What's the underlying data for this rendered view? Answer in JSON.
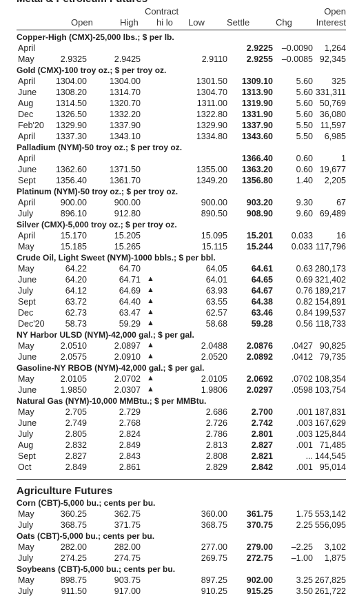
{
  "header": {
    "section_title": "Metal & Petroleum Futures",
    "contract_label": "Contract",
    "open_interest_top": "Open",
    "columns": [
      "Open",
      "High",
      "hi lo",
      "Low",
      "Settle",
      "Chg",
      "Interest"
    ]
  },
  "metal_petroleum": [
    {
      "name": "Copper-High (CMX)-25,000 lbs.; $ per lb.",
      "rows": [
        {
          "month": "April",
          "open": "",
          "high": "",
          "hilo": "",
          "low": "",
          "settle": "2.9225",
          "chg": "–0.0090",
          "oi": "1,264"
        },
        {
          "month": "May",
          "open": "2.9325",
          "high": "2.9425",
          "hilo": "",
          "low": "2.9110",
          "settle": "2.9255",
          "chg": "–0.0085",
          "oi": "92,345"
        }
      ]
    },
    {
      "name": "Gold (CMX)-100 troy oz.; $ per troy oz.",
      "rows": [
        {
          "month": "April",
          "open": "1304.00",
          "high": "1304.00",
          "hilo": "",
          "low": "1301.50",
          "settle": "1309.10",
          "chg": "5.60",
          "oi": "325"
        },
        {
          "month": "June",
          "open": "1308.20",
          "high": "1314.70",
          "hilo": "",
          "low": "1304.70",
          "settle": "1313.90",
          "chg": "5.60",
          "oi": "331,311"
        },
        {
          "month": "Aug",
          "open": "1314.50",
          "high": "1320.70",
          "hilo": "",
          "low": "1311.00",
          "settle": "1319.90",
          "chg": "5.60",
          "oi": "50,769"
        },
        {
          "month": "Dec",
          "open": "1326.50",
          "high": "1332.20",
          "hilo": "",
          "low": "1322.80",
          "settle": "1331.90",
          "chg": "5.60",
          "oi": "36,080"
        },
        {
          "month": "Feb'20",
          "open": "1329.90",
          "high": "1337.90",
          "hilo": "",
          "low": "1329.90",
          "settle": "1337.90",
          "chg": "5.50",
          "oi": "11,597"
        },
        {
          "month": "April",
          "open": "1337.30",
          "high": "1343.10",
          "hilo": "",
          "low": "1334.80",
          "settle": "1343.60",
          "chg": "5.50",
          "oi": "6,985"
        }
      ]
    },
    {
      "name": "Palladium (NYM)-50 troy oz.; $ per troy oz.",
      "rows": [
        {
          "month": "April",
          "open": "",
          "high": "",
          "hilo": "",
          "low": "",
          "settle": "1366.40",
          "chg": "0.60",
          "oi": "1"
        },
        {
          "month": "June",
          "open": "1362.60",
          "high": "1371.50",
          "hilo": "",
          "low": "1355.00",
          "settle": "1363.20",
          "chg": "0.60",
          "oi": "19,677"
        },
        {
          "month": "Sept",
          "open": "1356.40",
          "high": "1361.70",
          "hilo": "",
          "low": "1349.20",
          "settle": "1356.80",
          "chg": "1.40",
          "oi": "2,205"
        }
      ]
    },
    {
      "name": "Platinum (NYM)-50 troy oz.; $ per troy oz.",
      "rows": [
        {
          "month": "April",
          "open": "900.00",
          "high": "900.00",
          "hilo": "",
          "low": "900.00",
          "settle": "903.20",
          "chg": "9.30",
          "oi": "67"
        },
        {
          "month": "July",
          "open": "896.10",
          "high": "912.80",
          "hilo": "",
          "low": "890.50",
          "settle": "908.90",
          "chg": "9.60",
          "oi": "69,489"
        }
      ]
    },
    {
      "name": "Silver (CMX)-5,000 troy oz.; $ per troy oz.",
      "rows": [
        {
          "month": "April",
          "open": "15.170",
          "high": "15.205",
          "hilo": "",
          "low": "15.095",
          "settle": "15.201",
          "chg": "0.033",
          "oi": "16"
        },
        {
          "month": "May",
          "open": "15.185",
          "high": "15.265",
          "hilo": "",
          "low": "15.115",
          "settle": "15.244",
          "chg": "0.033",
          "oi": "117,796"
        }
      ]
    },
    {
      "name": "Crude Oil, Light Sweet (NYM)-1000 bbls.; $ per bbl.",
      "rows": [
        {
          "month": "May",
          "open": "64.22",
          "high": "64.70",
          "hilo": "",
          "low": "64.05",
          "settle": "64.61",
          "chg": "0.63",
          "oi": "280,173"
        },
        {
          "month": "June",
          "open": "64.20",
          "high": "64.71",
          "hilo": "▲",
          "low": "64.01",
          "settle": "64.65",
          "chg": "0.69",
          "oi": "321,402"
        },
        {
          "month": "July",
          "open": "64.12",
          "high": "64.69",
          "hilo": "▲",
          "low": "63.93",
          "settle": "64.67",
          "chg": "0.76",
          "oi": "189,217"
        },
        {
          "month": "Sept",
          "open": "63.72",
          "high": "64.40",
          "hilo": "▲",
          "low": "63.55",
          "settle": "64.38",
          "chg": "0.82",
          "oi": "154,891"
        },
        {
          "month": "Dec",
          "open": "62.73",
          "high": "63.47",
          "hilo": "▲",
          "low": "62.57",
          "settle": "63.46",
          "chg": "0.84",
          "oi": "199,537"
        },
        {
          "month": "Dec'20",
          "open": "58.73",
          "high": "59.29",
          "hilo": "▲",
          "low": "58.68",
          "settle": "59.28",
          "chg": "0.56",
          "oi": "118,733"
        }
      ]
    },
    {
      "name": "NY Harbor ULSD (NYM)-42,000 gal.; $ per gal.",
      "rows": [
        {
          "month": "May",
          "open": "2.0510",
          "high": "2.0897",
          "hilo": "▲",
          "low": "2.0488",
          "settle": "2.0876",
          "chg": ".0427",
          "oi": "90,825"
        },
        {
          "month": "June",
          "open": "2.0575",
          "high": "2.0910",
          "hilo": "▲",
          "low": "2.0520",
          "settle": "2.0892",
          "chg": ".0412",
          "oi": "79,735"
        }
      ]
    },
    {
      "name": "Gasoline-NY RBOB (NYM)-42,000 gal.; $ per gal.",
      "rows": [
        {
          "month": "May",
          "open": "2.0105",
          "high": "2.0702",
          "hilo": "▲",
          "low": "2.0105",
          "settle": "2.0692",
          "chg": ".0702",
          "oi": "108,354"
        },
        {
          "month": "June",
          "open": "1.9850",
          "high": "2.0307",
          "hilo": "▲",
          "low": "1.9806",
          "settle": "2.0297",
          "chg": ".0598",
          "oi": "103,754"
        }
      ]
    },
    {
      "name": "Natural Gas (NYM)-10,000 MMBtu.; $ per MMBtu.",
      "rows": [
        {
          "month": "May",
          "open": "2.705",
          "high": "2.729",
          "hilo": "",
          "low": "2.686",
          "settle": "2.700",
          "chg": ".001",
          "oi": "187,831"
        },
        {
          "month": "June",
          "open": "2.749",
          "high": "2.768",
          "hilo": "",
          "low": "2.726",
          "settle": "2.742",
          "chg": ".003",
          "oi": "167,629"
        },
        {
          "month": "July",
          "open": "2.805",
          "high": "2.824",
          "hilo": "",
          "low": "2.786",
          "settle": "2.801",
          "chg": ".003",
          "oi": "125,844"
        },
        {
          "month": "Aug",
          "open": "2.832",
          "high": "2.849",
          "hilo": "",
          "low": "2.813",
          "settle": "2.827",
          "chg": ".001",
          "oi": "71,485"
        },
        {
          "month": "Sept",
          "open": "2.827",
          "high": "2.843",
          "hilo": "",
          "low": "2.808",
          "settle": "2.821",
          "chg": "...",
          "oi": "144,545"
        },
        {
          "month": "Oct",
          "open": "2.849",
          "high": "2.861",
          "hilo": "",
          "low": "2.829",
          "settle": "2.842",
          "chg": ".001",
          "oi": "95,014"
        }
      ]
    }
  ],
  "agri_title": "Agriculture Futures",
  "agriculture": [
    {
      "name": "Corn (CBT)-5,000 bu.; cents per bu.",
      "rows": [
        {
          "month": "May",
          "open": "360.25",
          "high": "362.75",
          "hilo": "",
          "low": "360.00",
          "settle": "361.75",
          "chg": "1.75",
          "oi": "553,142"
        },
        {
          "month": "July",
          "open": "368.75",
          "high": "371.75",
          "hilo": "",
          "low": "368.75",
          "settle": "370.75",
          "chg": "2.25",
          "oi": "556,095"
        }
      ]
    },
    {
      "name": "Oats (CBT)-5,000 bu.; cents per bu.",
      "rows": [
        {
          "month": "May",
          "open": "282.00",
          "high": "282.00",
          "hilo": "",
          "low": "277.00",
          "settle": "279.00",
          "chg": "–2.25",
          "oi": "3,102"
        },
        {
          "month": "July",
          "open": "274.25",
          "high": "274.75",
          "hilo": "",
          "low": "269.75",
          "settle": "272.75",
          "chg": "–1.00",
          "oi": "1,875"
        }
      ]
    },
    {
      "name": "Soybeans (CBT)-5,000 bu.; cents per bu.",
      "rows": [
        {
          "month": "May",
          "open": "898.75",
          "high": "903.75",
          "hilo": "",
          "low": "897.25",
          "settle": "902.00",
          "chg": "3.25",
          "oi": "267,825"
        },
        {
          "month": "July",
          "open": "911.50",
          "high": "917.00",
          "hilo": "",
          "low": "910.25",
          "settle": "915.25",
          "chg": "3.50",
          "oi": "261,722"
        }
      ]
    }
  ]
}
